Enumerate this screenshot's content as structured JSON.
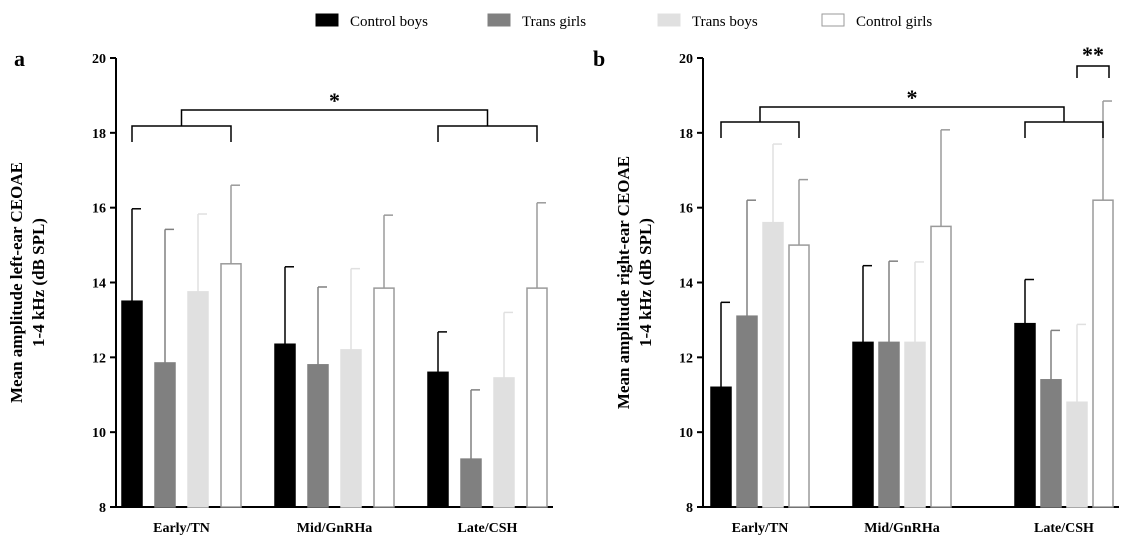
{
  "legend": [
    {
      "name": "Control boys",
      "fill": "#000000",
      "stroke": "#000000"
    },
    {
      "name": "Trans girls",
      "fill": "#808080",
      "stroke": "#808080"
    },
    {
      "name": "Trans boys",
      "fill": "#e0e0e0",
      "stroke": "#e0e0e0"
    },
    {
      "name": "Control girls",
      "fill": "#ffffff",
      "stroke": "#9a9a9a"
    }
  ],
  "chart_data": [
    {
      "type": "bar",
      "panel_label": "a",
      "ylabel_line1": "Mean amplitude left-ear CEOAE",
      "ylabel_line2": "1-4 kHz (dB SPL)",
      "categories": [
        "Early/TN",
        "Mid/GnRHa",
        "Late/CSH"
      ],
      "ylim": [
        8,
        20
      ],
      "yticks": [
        "8",
        "10",
        "12",
        "14",
        "16",
        "18",
        "20"
      ],
      "series": [
        {
          "name": "Control boys",
          "values": [
            13.5,
            12.35,
            11.6
          ],
          "error_upper": [
            15.97,
            14.42,
            12.68
          ]
        },
        {
          "name": "Trans girls",
          "values": [
            11.85,
            11.8,
            9.28
          ],
          "error_upper": [
            15.42,
            13.88,
            11.13
          ]
        },
        {
          "name": "Trans boys",
          "values": [
            13.75,
            12.2,
            11.45
          ],
          "error_upper": [
            15.83,
            14.37,
            13.2
          ]
        },
        {
          "name": "Control girls",
          "values": [
            14.5,
            13.85,
            13.85
          ],
          "error_upper": [
            16.6,
            15.8,
            16.13
          ]
        }
      ],
      "annotations": [
        {
          "text": "*",
          "between": [
            "Early/TN",
            "Late/CSH"
          ]
        }
      ]
    },
    {
      "type": "bar",
      "panel_label": "b",
      "ylabel_line1": "Mean amplitude right-ear CEOAE",
      "ylabel_line2": "1-4 kHz (dB SPL)",
      "categories": [
        "Early/TN",
        "Mid/GnRHa",
        "Late/CSH"
      ],
      "ylim": [
        8,
        20
      ],
      "yticks": [
        "8",
        "10",
        "12",
        "14",
        "16",
        "18",
        "20"
      ],
      "series": [
        {
          "name": "Control boys",
          "values": [
            11.2,
            12.4,
            12.9
          ],
          "error_upper": [
            13.47,
            14.45,
            14.08
          ]
        },
        {
          "name": "Trans girls",
          "values": [
            13.1,
            12.4,
            11.4
          ],
          "error_upper": [
            16.2,
            14.57,
            12.72
          ]
        },
        {
          "name": "Trans boys",
          "values": [
            15.6,
            12.4,
            10.8
          ],
          "error_upper": [
            17.7,
            14.55,
            12.88
          ]
        },
        {
          "name": "Control girls",
          "values": [
            15.0,
            15.5,
            16.2
          ],
          "error_upper": [
            16.75,
            18.08,
            18.85
          ]
        }
      ],
      "annotations": [
        {
          "text": "*",
          "between": [
            "Early/TN",
            "Late/CSH"
          ]
        },
        {
          "text": "**",
          "between": [
            "Late/CSH: Trans boys",
            "Late/CSH: Control girls"
          ]
        }
      ]
    }
  ]
}
